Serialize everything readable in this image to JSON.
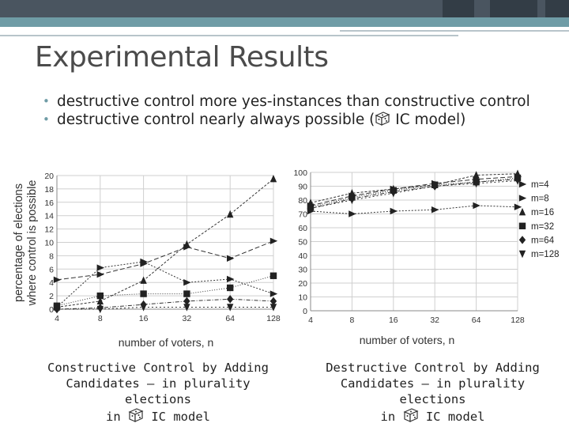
{
  "slide": {
    "title": "Experimental Results",
    "bullets": [
      {
        "text": "destructive control more yes-instances than constructive control"
      },
      {
        "text_before": "destructive control nearly always possible (",
        "text_after": " IC model)"
      }
    ]
  },
  "captions": {
    "left_line1": "Constructive Control by Adding",
    "left_line2": "Candidates – in plurality elections",
    "left_pre": "in ",
    "left_post": " IC model",
    "right_line1": "Destructive Control by Adding",
    "right_line2": "Candidates – in plurality elections",
    "right_pre": "in ",
    "right_post": " IC model"
  },
  "chart_data": [
    {
      "type": "line",
      "title": "",
      "xlabel": "number of voters, n",
      "ylabel": "percentage of elections where control is possible",
      "ylabel_lines": [
        "percentage of elections",
        "where control is possible"
      ],
      "x": [
        "4",
        "8",
        "16",
        "32",
        "64",
        "128"
      ],
      "ylim": [
        0,
        20
      ],
      "yticks": [
        0,
        2,
        4,
        6,
        8,
        10,
        12,
        14,
        16,
        18,
        20
      ],
      "grid": true,
      "series": [
        {
          "name": "m=4",
          "marker": "triangle-right",
          "values": [
            0.3,
            6.2,
            7.1,
            4.0,
            4.5,
            2.3
          ]
        },
        {
          "name": "m=8",
          "marker": "triangle-right",
          "values": [
            4.4,
            5.2,
            6.8,
            9.3,
            7.6,
            10.2
          ]
        },
        {
          "name": "m=16",
          "marker": "triangle-up",
          "values": [
            0.3,
            1.2,
            4.3,
            9.7,
            14.2,
            19.5
          ]
        },
        {
          "name": "m=32",
          "marker": "square",
          "values": [
            0.5,
            2.0,
            2.3,
            2.3,
            3.2,
            5.0
          ]
        },
        {
          "name": "m=64",
          "marker": "diamond",
          "values": [
            0.0,
            0.2,
            0.7,
            1.2,
            1.5,
            1.2
          ]
        },
        {
          "name": "m=128",
          "marker": "triangle-down",
          "values": [
            0.0,
            0.0,
            0.3,
            0.3,
            0.3,
            0.3
          ]
        }
      ]
    },
    {
      "type": "line",
      "title": "",
      "xlabel": "number of voters, n",
      "ylabel": "",
      "x": [
        "4",
        "8",
        "16",
        "32",
        "64",
        "128"
      ],
      "ylim": [
        0,
        100
      ],
      "yticks": [
        0,
        10,
        20,
        30,
        40,
        50,
        60,
        70,
        80,
        90,
        100
      ],
      "grid": true,
      "legend": "right",
      "series": [
        {
          "name": "m=4",
          "marker": "triangle-right",
          "values": [
            72,
            70,
            72,
            73,
            76,
            75
          ]
        },
        {
          "name": "m=8",
          "marker": "triangle-right",
          "values": [
            76,
            83,
            88,
            92,
            95,
            97
          ]
        },
        {
          "name": "m=16",
          "marker": "triangle-up",
          "values": [
            78,
            85,
            88,
            91,
            98,
            99
          ]
        },
        {
          "name": "m=32",
          "marker": "square",
          "values": [
            75,
            82,
            87,
            91,
            93,
            96
          ]
        },
        {
          "name": "m=64",
          "marker": "diamond",
          "values": [
            74,
            81,
            86,
            90,
            93,
            95
          ]
        },
        {
          "name": "m=128",
          "marker": "triangle-down",
          "values": [
            74,
            80,
            85,
            90,
            92,
            94
          ]
        }
      ]
    }
  ]
}
